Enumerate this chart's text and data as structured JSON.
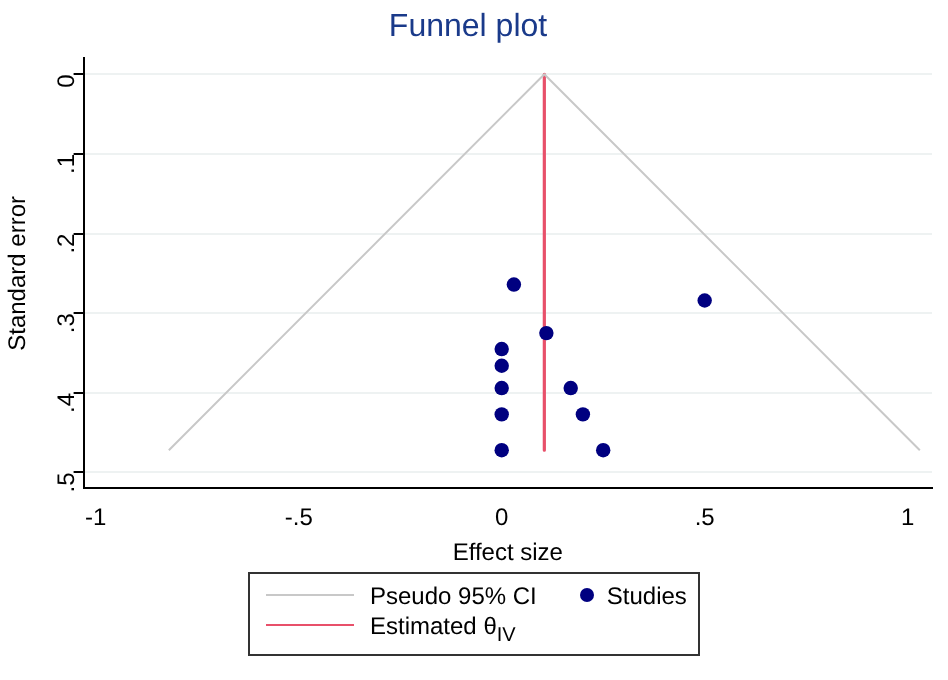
{
  "chart_data": {
    "type": "scatter",
    "title": "Funnel plot",
    "xlabel": "Effect size",
    "ylabel": "Standard error",
    "xlim": [
      -1.03,
      1.06
    ],
    "xticks": [
      -1,
      {
        "value": -0.5,
        "label": "-.5"
      },
      0,
      {
        "value": 0.5,
        "label": ".5"
      },
      1
    ],
    "ylim": [
      0.52,
      -0.02
    ],
    "yticks": [
      0,
      {
        "value": 0.1,
        "label": ".1"
      },
      {
        "value": 0.2,
        "label": ".2"
      },
      {
        "value": 0.3,
        "label": ".3"
      },
      {
        "value": 0.4,
        "label": ".4"
      },
      {
        "value": 0.5,
        "label": ".5"
      }
    ],
    "grid": "y",
    "legend": "bottom",
    "series": [
      {
        "name": "Pseudo 95% CI",
        "type": "line",
        "color": "#c8c8c8",
        "x": [
          -0.82,
          0.105,
          1.03
        ],
        "values": [
          0.472,
          0,
          0.472
        ]
      },
      {
        "name": "Studies",
        "marker": "circle",
        "color": "#000080",
        "x": [
          0.03,
          0.5,
          0.11,
          0,
          0,
          0,
          0.17,
          0,
          0.2,
          0,
          0.25
        ],
        "values": [
          0.264,
          0.284,
          0.325,
          0.345,
          0.366,
          0.394,
          0.394,
          0.427,
          0.427,
          0.472,
          0.472
        ]
      },
      {
        "name": "Estimated θ$_{IV}$",
        "type": "line",
        "color": "#e8506a",
        "x": [
          0.105,
          0.105
        ],
        "values": [
          0,
          0.472
        ]
      }
    ]
  }
}
